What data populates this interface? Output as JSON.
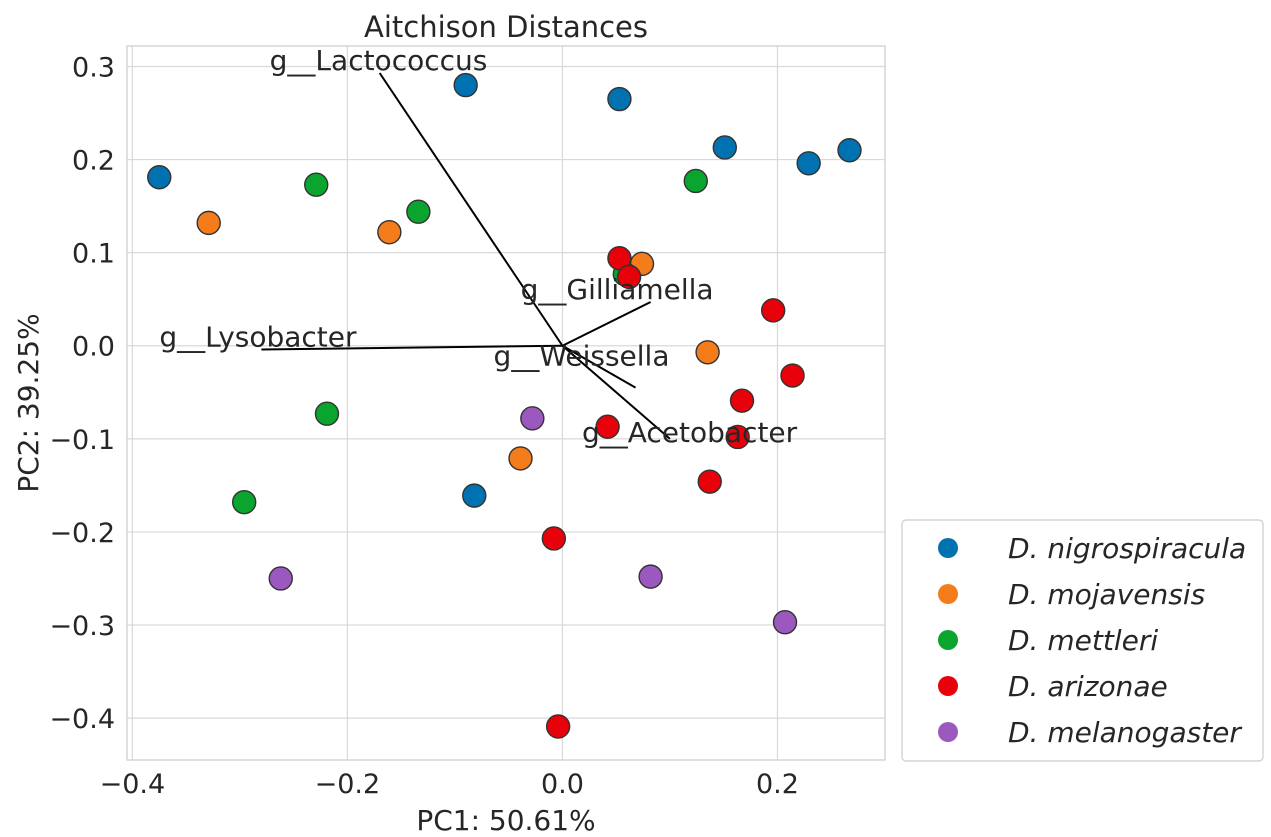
{
  "chart_data": {
    "type": "scatter",
    "title": "Aitchison Distances",
    "xlabel": "PC1: 50.61%",
    "ylabel": "PC2: 39.25%",
    "xlim": [
      -0.405,
      0.3
    ],
    "ylim": [
      -0.445,
      0.322
    ],
    "xticks": [
      -0.4,
      -0.2,
      0.0,
      0.2
    ],
    "xtick_labels": [
      "−0.4",
      "−0.2",
      "0.0",
      "0.2"
    ],
    "yticks": [
      0.3,
      0.2,
      0.1,
      0.0,
      -0.1,
      -0.2,
      -0.3,
      -0.4
    ],
    "ytick_labels": [
      "0.3",
      "0.2",
      "0.1",
      "0.0",
      "−0.1",
      "−0.2",
      "−0.3",
      "−0.4"
    ],
    "grid": true,
    "legend_position": "bottom-right outside",
    "series": [
      {
        "name": "D. nigrospiracula",
        "color": "#0072b2",
        "points": [
          [
            -0.375,
            0.181
          ],
          [
            -0.09,
            0.28
          ],
          [
            0.053,
            0.265
          ],
          [
            0.151,
            0.213
          ],
          [
            0.229,
            0.196
          ],
          [
            0.267,
            0.21
          ],
          [
            -0.082,
            -0.161
          ]
        ]
      },
      {
        "name": "D. mojavensis",
        "color": "#f57c1a",
        "points": [
          [
            -0.329,
            0.132
          ],
          [
            -0.161,
            0.122
          ],
          [
            0.074,
            0.088
          ],
          [
            0.135,
            -0.007
          ],
          [
            -0.039,
            -0.121
          ]
        ]
      },
      {
        "name": "D. mettleri",
        "color": "#0aa52e",
        "points": [
          [
            -0.229,
            0.173
          ],
          [
            -0.134,
            0.144
          ],
          [
            0.124,
            0.177
          ],
          [
            0.058,
            0.077
          ],
          [
            -0.219,
            -0.073
          ],
          [
            -0.296,
            -0.168
          ]
        ]
      },
      {
        "name": "D. arizonae",
        "color": "#e8000b",
        "points": [
          [
            0.053,
            0.094
          ],
          [
            0.062,
            0.074
          ],
          [
            0.196,
            0.038
          ],
          [
            0.214,
            -0.032
          ],
          [
            0.167,
            -0.059
          ],
          [
            0.163,
            -0.098
          ],
          [
            0.042,
            -0.087
          ],
          [
            0.137,
            -0.146
          ],
          [
            -0.008,
            -0.207
          ],
          [
            -0.004,
            -0.409
          ]
        ]
      },
      {
        "name": "D. melanogaster",
        "color": "#9b59c0",
        "points": [
          [
            -0.028,
            -0.078
          ],
          [
            -0.262,
            -0.25
          ],
          [
            0.082,
            -0.248
          ],
          [
            0.207,
            -0.297
          ]
        ]
      }
    ],
    "loadings": [
      {
        "name": "g__Lactococcus",
        "end": [
          -0.17,
          0.293
        ]
      },
      {
        "name": "g__Gilliamella",
        "end": [
          0.082,
          0.047
        ]
      },
      {
        "name": "g__Lysobacter",
        "end": [
          -0.28,
          -0.004
        ]
      },
      {
        "name": "g__Weissella",
        "end": [
          0.068,
          -0.045
        ]
      },
      {
        "name": "g__Acetobacter",
        "end": [
          0.1,
          -0.1
        ]
      }
    ]
  }
}
